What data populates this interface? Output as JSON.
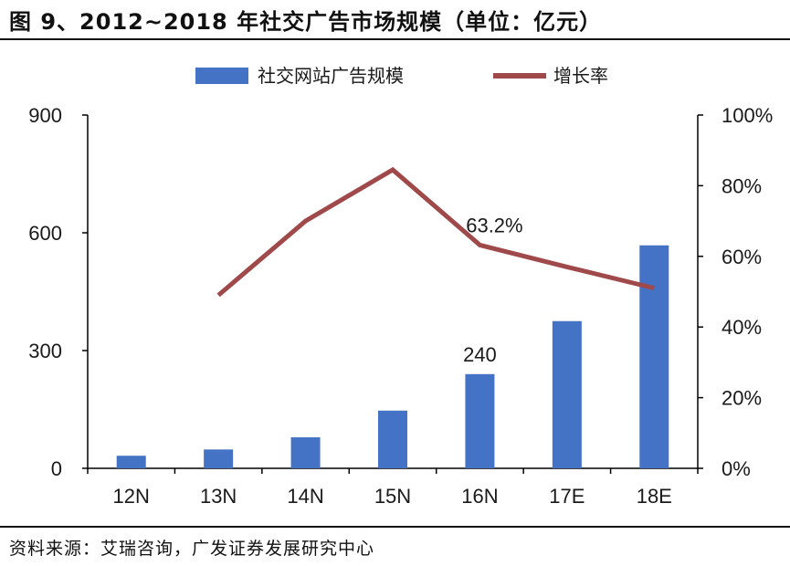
{
  "header": {
    "title": "图 9、2012~2018 年社交广告市场规模（单位：亿元）"
  },
  "footer": {
    "source": "资料来源：艾瑞咨询，广发证券发展研究中心"
  },
  "colors": {
    "bar": "#4472c4",
    "line": "#a0494b",
    "axis": "#000000"
  },
  "chart_data": {
    "type": "bar",
    "title": "",
    "categories": [
      "12N",
      "13N",
      "14N",
      "15N",
      "16N",
      "17E",
      "18E"
    ],
    "legend_position": "top",
    "grid": false,
    "series": [
      {
        "name": "社交网站广告规模",
        "type": "bar",
        "axis": "left",
        "values": [
          32,
          48,
          79,
          147,
          240,
          375,
          568
        ]
      },
      {
        "name": "增长率",
        "type": "line",
        "axis": "right",
        "values": [
          null,
          49,
          70,
          84.5,
          63.2,
          57,
          51
        ]
      }
    ],
    "y_left": {
      "min": 0,
      "max": 900,
      "ticks": [
        "0",
        "300",
        "600",
        "900"
      ]
    },
    "y_right": {
      "min": 0,
      "max": 100,
      "ticks": [
        "0%",
        "20%",
        "40%",
        "60%",
        "80%",
        "100%"
      ]
    },
    "annotations": [
      {
        "series": 0,
        "index": 4,
        "text": "240"
      },
      {
        "series": 1,
        "index": 4,
        "text": "63.2%"
      }
    ]
  }
}
